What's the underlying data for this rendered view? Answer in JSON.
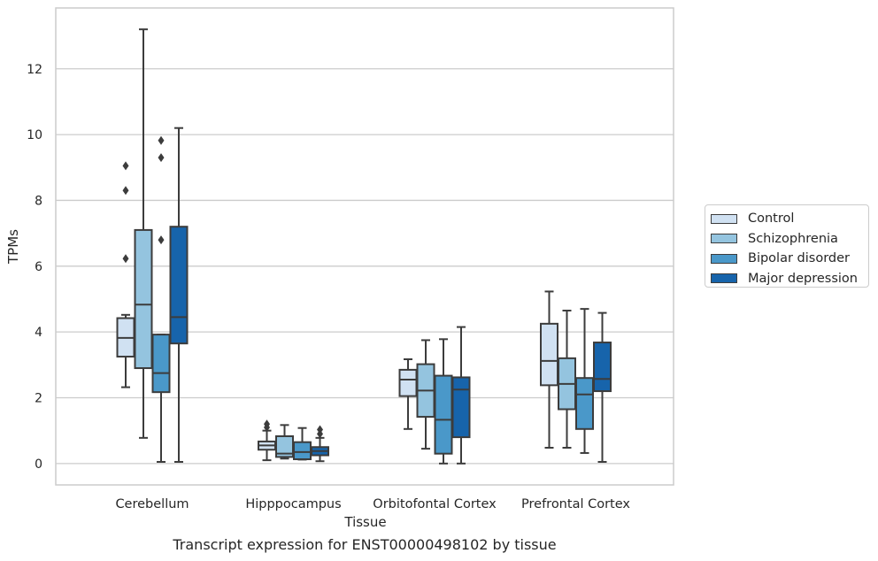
{
  "caption": "Transcript expression for ENST00000498102 by tissue",
  "chart_data": {
    "type": "box",
    "xlabel": "Tissue",
    "ylabel": "TPMs",
    "ylim": [
      -0.65,
      13.85
    ],
    "yticks": [
      0,
      2,
      4,
      6,
      8,
      10,
      12
    ],
    "grid": true,
    "legend_position": "right",
    "categories": [
      "Cerebellum",
      "Hipppocampus",
      "Orbitofontal Cortex",
      "Prefrontal Cortex"
    ],
    "series": [
      {
        "name": "Control",
        "color": "#d0e1f2",
        "boxes": [
          {
            "whisker_low": 2.32,
            "q1": 3.25,
            "median": 3.82,
            "q3": 4.42,
            "whisker_high": 4.52,
            "outliers": [
              6.23,
              8.3,
              9.05
            ]
          },
          {
            "whisker_low": 0.1,
            "q1": 0.42,
            "median": 0.55,
            "q3": 0.67,
            "whisker_high": 1.0,
            "outliers": [
              1.1,
              1.2
            ]
          },
          {
            "whisker_low": 1.05,
            "q1": 2.05,
            "median": 2.55,
            "q3": 2.85,
            "whisker_high": 3.17,
            "outliers": []
          },
          {
            "whisker_low": 0.48,
            "q1": 2.38,
            "median": 3.12,
            "q3": 4.25,
            "whisker_high": 5.23,
            "outliers": []
          }
        ]
      },
      {
        "name": "Schizophrenia",
        "color": "#94c4df",
        "boxes": [
          {
            "whisker_low": 0.78,
            "q1": 2.9,
            "median": 4.83,
            "q3": 7.1,
            "whisker_high": 13.2,
            "outliers": []
          },
          {
            "whisker_low": 0.15,
            "q1": 0.2,
            "median": 0.3,
            "q3": 0.83,
            "whisker_high": 1.17,
            "outliers": []
          },
          {
            "whisker_low": 0.45,
            "q1": 1.42,
            "median": 2.22,
            "q3": 3.02,
            "whisker_high": 3.75,
            "outliers": []
          },
          {
            "whisker_low": 0.48,
            "q1": 1.65,
            "median": 2.42,
            "q3": 3.2,
            "whisker_high": 4.65,
            "outliers": []
          }
        ]
      },
      {
        "name": "Bipolar disorder",
        "color": "#4a98c9",
        "boxes": [
          {
            "whisker_low": 0.05,
            "q1": 2.17,
            "median": 2.75,
            "q3": 3.92,
            "whisker_high": 3.92,
            "outliers": [
              6.8,
              9.3,
              9.82
            ]
          },
          {
            "whisker_low": 0.12,
            "q1": 0.13,
            "median": 0.35,
            "q3": 0.65,
            "whisker_high": 1.08,
            "outliers": []
          },
          {
            "whisker_low": 0.0,
            "q1": 0.3,
            "median": 1.33,
            "q3": 2.67,
            "whisker_high": 3.78,
            "outliers": []
          },
          {
            "whisker_low": 0.32,
            "q1": 1.05,
            "median": 2.1,
            "q3": 2.6,
            "whisker_high": 4.7,
            "outliers": []
          }
        ]
      },
      {
        "name": "Major depression",
        "color": "#1764ab",
        "boxes": [
          {
            "whisker_low": 0.05,
            "q1": 3.65,
            "median": 4.45,
            "q3": 7.2,
            "whisker_high": 10.2,
            "outliers": []
          },
          {
            "whisker_low": 0.07,
            "q1": 0.25,
            "median": 0.38,
            "q3": 0.5,
            "whisker_high": 0.78,
            "outliers": [
              0.9,
              1.03
            ]
          },
          {
            "whisker_low": 0.0,
            "q1": 0.8,
            "median": 2.25,
            "q3": 2.62,
            "whisker_high": 4.15,
            "outliers": []
          },
          {
            "whisker_low": 0.05,
            "q1": 2.2,
            "median": 2.57,
            "q3": 3.68,
            "whisker_high": 4.58,
            "outliers": []
          }
        ]
      }
    ]
  }
}
